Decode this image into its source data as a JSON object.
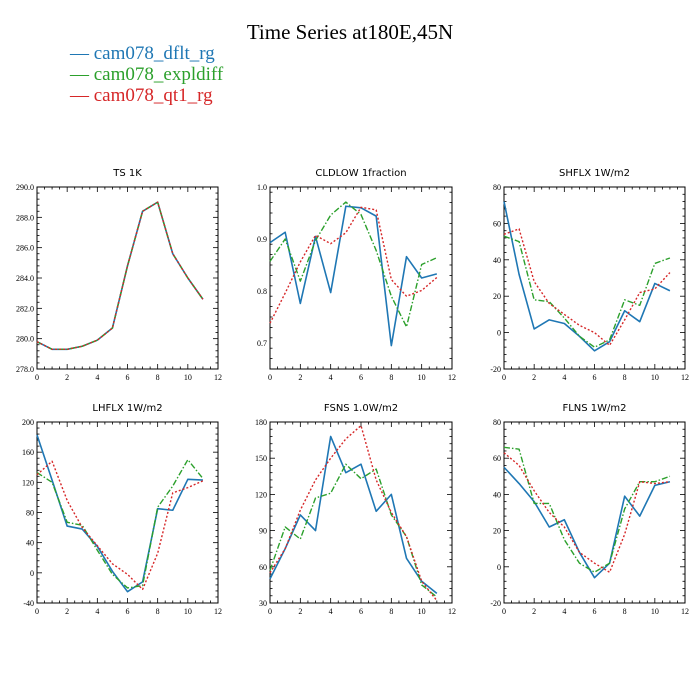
{
  "title": "Time Series at180E,45N",
  "legend": [
    {
      "label": "cam078_dflt_rg",
      "color": "#1f77b4"
    },
    {
      "label": "cam078_expldiff",
      "color": "#2ca02c"
    },
    {
      "label": "cam078_qt1_rg",
      "color": "#d62728"
    }
  ],
  "chart_data": [
    {
      "type": "line",
      "title": "TS   1K",
      "x": [
        0,
        1,
        2,
        3,
        4,
        5,
        6,
        7,
        8,
        9,
        10,
        11
      ],
      "xlim": [
        0,
        12
      ],
      "xticks": [
        0,
        2,
        4,
        6,
        8,
        10,
        12
      ],
      "ylim": [
        278,
        290
      ],
      "yticks": [
        278,
        280,
        282,
        284,
        286,
        288,
        290
      ],
      "ytick_labels": [
        "278.0",
        "280.0",
        "282.0",
        "284.0",
        "286.0",
        "288.0",
        "290.0"
      ],
      "series": [
        {
          "name": "cam078_dflt_rg",
          "values": [
            279.8,
            279.3,
            279.3,
            279.5,
            279.9,
            280.7,
            284.8,
            288.4,
            289.0,
            285.6,
            284.0,
            282.6
          ]
        },
        {
          "name": "cam078_expldiff",
          "values": [
            279.8,
            279.3,
            279.3,
            279.5,
            279.9,
            280.7,
            284.8,
            288.4,
            289.0,
            285.6,
            284.0,
            282.6
          ]
        },
        {
          "name": "cam078_qt1_rg",
          "values": [
            279.8,
            279.3,
            279.3,
            279.5,
            279.9,
            280.7,
            284.8,
            288.4,
            289.0,
            285.6,
            284.0,
            282.6
          ]
        }
      ]
    },
    {
      "type": "line",
      "title": "CLDLOW   1fraction",
      "x": [
        0,
        1,
        2,
        3,
        4,
        5,
        6,
        7,
        8,
        9,
        10,
        11
      ],
      "xlim": [
        0,
        12
      ],
      "xticks": [
        0,
        2,
        4,
        6,
        8,
        10,
        12
      ],
      "ylim": [
        0.65,
        1.0
      ],
      "yticks": [
        0.7,
        0.8,
        0.9,
        1.0
      ],
      "ytick_labels": [
        "0.7",
        "0.8",
        "0.9",
        "1.0"
      ],
      "series": [
        {
          "name": "cam078_dflt_rg",
          "values": [
            0.893,
            0.913,
            0.776,
            0.905,
            0.797,
            0.963,
            0.96,
            0.944,
            0.695,
            0.866,
            0.825,
            0.833
          ]
        },
        {
          "name": "cam078_expldiff",
          "values": [
            0.857,
            0.9,
            0.819,
            0.897,
            0.946,
            0.971,
            0.947,
            0.878,
            0.79,
            0.731,
            0.851,
            0.864
          ]
        },
        {
          "name": "cam078_qt1_rg",
          "values": [
            0.738,
            0.796,
            0.856,
            0.907,
            0.891,
            0.912,
            0.961,
            0.956,
            0.822,
            0.79,
            0.801,
            0.826
          ]
        }
      ]
    },
    {
      "type": "line",
      "title": "SHFLX   1W/m2",
      "x": [
        0,
        1,
        2,
        3,
        4,
        5,
        6,
        7,
        8,
        9,
        10,
        11
      ],
      "xlim": [
        0,
        12
      ],
      "xticks": [
        0,
        2,
        4,
        6,
        8,
        10,
        12
      ],
      "ylim": [
        -20,
        80
      ],
      "yticks": [
        -20,
        0,
        20,
        40,
        60,
        80
      ],
      "ytick_labels": [
        "-20",
        "0",
        "20",
        "40",
        "60",
        "80"
      ],
      "series": [
        {
          "name": "cam078_dflt_rg",
          "values": [
            72,
            32,
            2,
            7,
            5,
            -2,
            -10,
            -5,
            12,
            6,
            27,
            23
          ]
        },
        {
          "name": "cam078_expldiff",
          "values": [
            53,
            50,
            18,
            17,
            8,
            -2,
            -8,
            -4,
            18,
            15,
            38,
            41
          ]
        },
        {
          "name": "cam078_qt1_rg",
          "values": [
            54,
            57,
            28,
            16,
            10,
            4,
            0,
            -7,
            7,
            22,
            24,
            33
          ]
        }
      ]
    },
    {
      "type": "line",
      "title": "LHFLX   1W/m2",
      "x": [
        0,
        1,
        2,
        3,
        4,
        5,
        6,
        7,
        8,
        9,
        10,
        11
      ],
      "xlim": [
        0,
        12
      ],
      "xticks": [
        0,
        2,
        4,
        6,
        8,
        10,
        12
      ],
      "ylim": [
        -40,
        200
      ],
      "yticks": [
        -40,
        0,
        40,
        80,
        120,
        160,
        200
      ],
      "ytick_labels": [
        "-40",
        "0",
        "40",
        "80",
        "120",
        "160",
        "200"
      ],
      "series": [
        {
          "name": "cam078_dflt_rg",
          "values": [
            183,
            123,
            62,
            58,
            35,
            2,
            -25,
            -12,
            85,
            83,
            124,
            123
          ]
        },
        {
          "name": "cam078_expldiff",
          "values": [
            133,
            120,
            67,
            63,
            30,
            -2,
            -20,
            -17,
            87,
            115,
            150,
            125
          ]
        },
        {
          "name": "cam078_qt1_rg",
          "values": [
            130,
            148,
            96,
            60,
            36,
            12,
            -2,
            -22,
            26,
            106,
            113,
            122
          ]
        }
      ]
    },
    {
      "type": "line",
      "title": "FSNS   1.0W/m2",
      "x": [
        0,
        1,
        2,
        3,
        4,
        5,
        6,
        7,
        8,
        9,
        10,
        11
      ],
      "xlim": [
        0,
        12
      ],
      "xticks": [
        0,
        2,
        4,
        6,
        8,
        10,
        12
      ],
      "ylim": [
        30,
        180
      ],
      "yticks": [
        30,
        60,
        90,
        120,
        150,
        180
      ],
      "ytick_labels": [
        "30",
        "60",
        "90",
        "120",
        "150",
        "180"
      ],
      "series": [
        {
          "name": "cam078_dflt_rg",
          "values": [
            50,
            75,
            103,
            90,
            168,
            138,
            145,
            106,
            120,
            67,
            48,
            38
          ]
        },
        {
          "name": "cam078_expldiff",
          "values": [
            57,
            93,
            83,
            117,
            121,
            145,
            133,
            141,
            103,
            85,
            45,
            35
          ]
        },
        {
          "name": "cam078_qt1_rg",
          "values": [
            55,
            75,
            107,
            132,
            150,
            166,
            177,
            132,
            105,
            85,
            48,
            32
          ]
        }
      ]
    },
    {
      "type": "line",
      "title": "FLNS   1W/m2",
      "x": [
        0,
        1,
        2,
        3,
        4,
        5,
        6,
        7,
        8,
        9,
        10,
        11
      ],
      "xlim": [
        0,
        12
      ],
      "xticks": [
        0,
        2,
        4,
        6,
        8,
        10,
        12
      ],
      "ylim": [
        -20,
        80
      ],
      "yticks": [
        -20,
        0,
        20,
        40,
        60,
        80
      ],
      "ytick_labels": [
        "-20",
        "0",
        "20",
        "40",
        "60",
        "80"
      ],
      "series": [
        {
          "name": "cam078_dflt_rg",
          "values": [
            55,
            46,
            36,
            22,
            26,
            8,
            -6,
            2,
            39,
            28,
            45,
            47
          ]
        },
        {
          "name": "cam078_expldiff",
          "values": [
            66,
            65,
            35,
            35,
            15,
            2,
            -3,
            2,
            32,
            47,
            47,
            50
          ]
        },
        {
          "name": "cam078_qt1_rg",
          "values": [
            63,
            56,
            42,
            30,
            22,
            8,
            2,
            -3,
            18,
            47,
            46,
            47
          ]
        }
      ]
    }
  ]
}
